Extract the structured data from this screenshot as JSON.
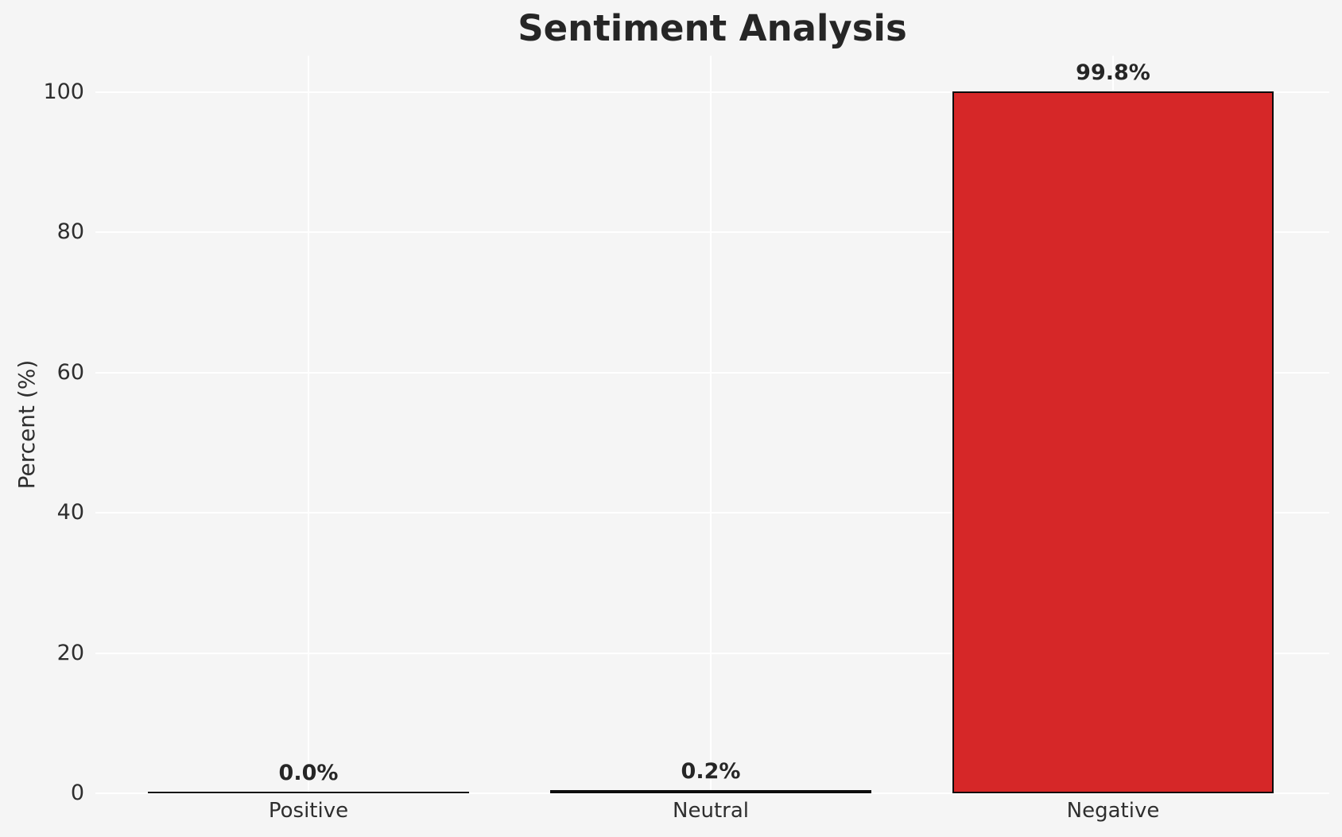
{
  "chart_data": {
    "type": "bar",
    "title": "Sentiment Analysis",
    "xlabel": "",
    "ylabel": "Percent (%)",
    "categories": [
      "Positive",
      "Neutral",
      "Negative"
    ],
    "values": [
      0.0,
      0.2,
      99.8
    ],
    "value_labels": [
      "0.0%",
      "0.2%",
      "99.8%"
    ],
    "ylim": [
      0,
      100
    ],
    "yticks": [
      0,
      20,
      40,
      60,
      80,
      100
    ],
    "grid": true,
    "legend": false,
    "bar_color": "#d62728",
    "bar_edge_color": "#0d0d0d",
    "background_color": "#f5f5f5",
    "grid_color": "#ffffff",
    "text_color": "#262626"
  }
}
